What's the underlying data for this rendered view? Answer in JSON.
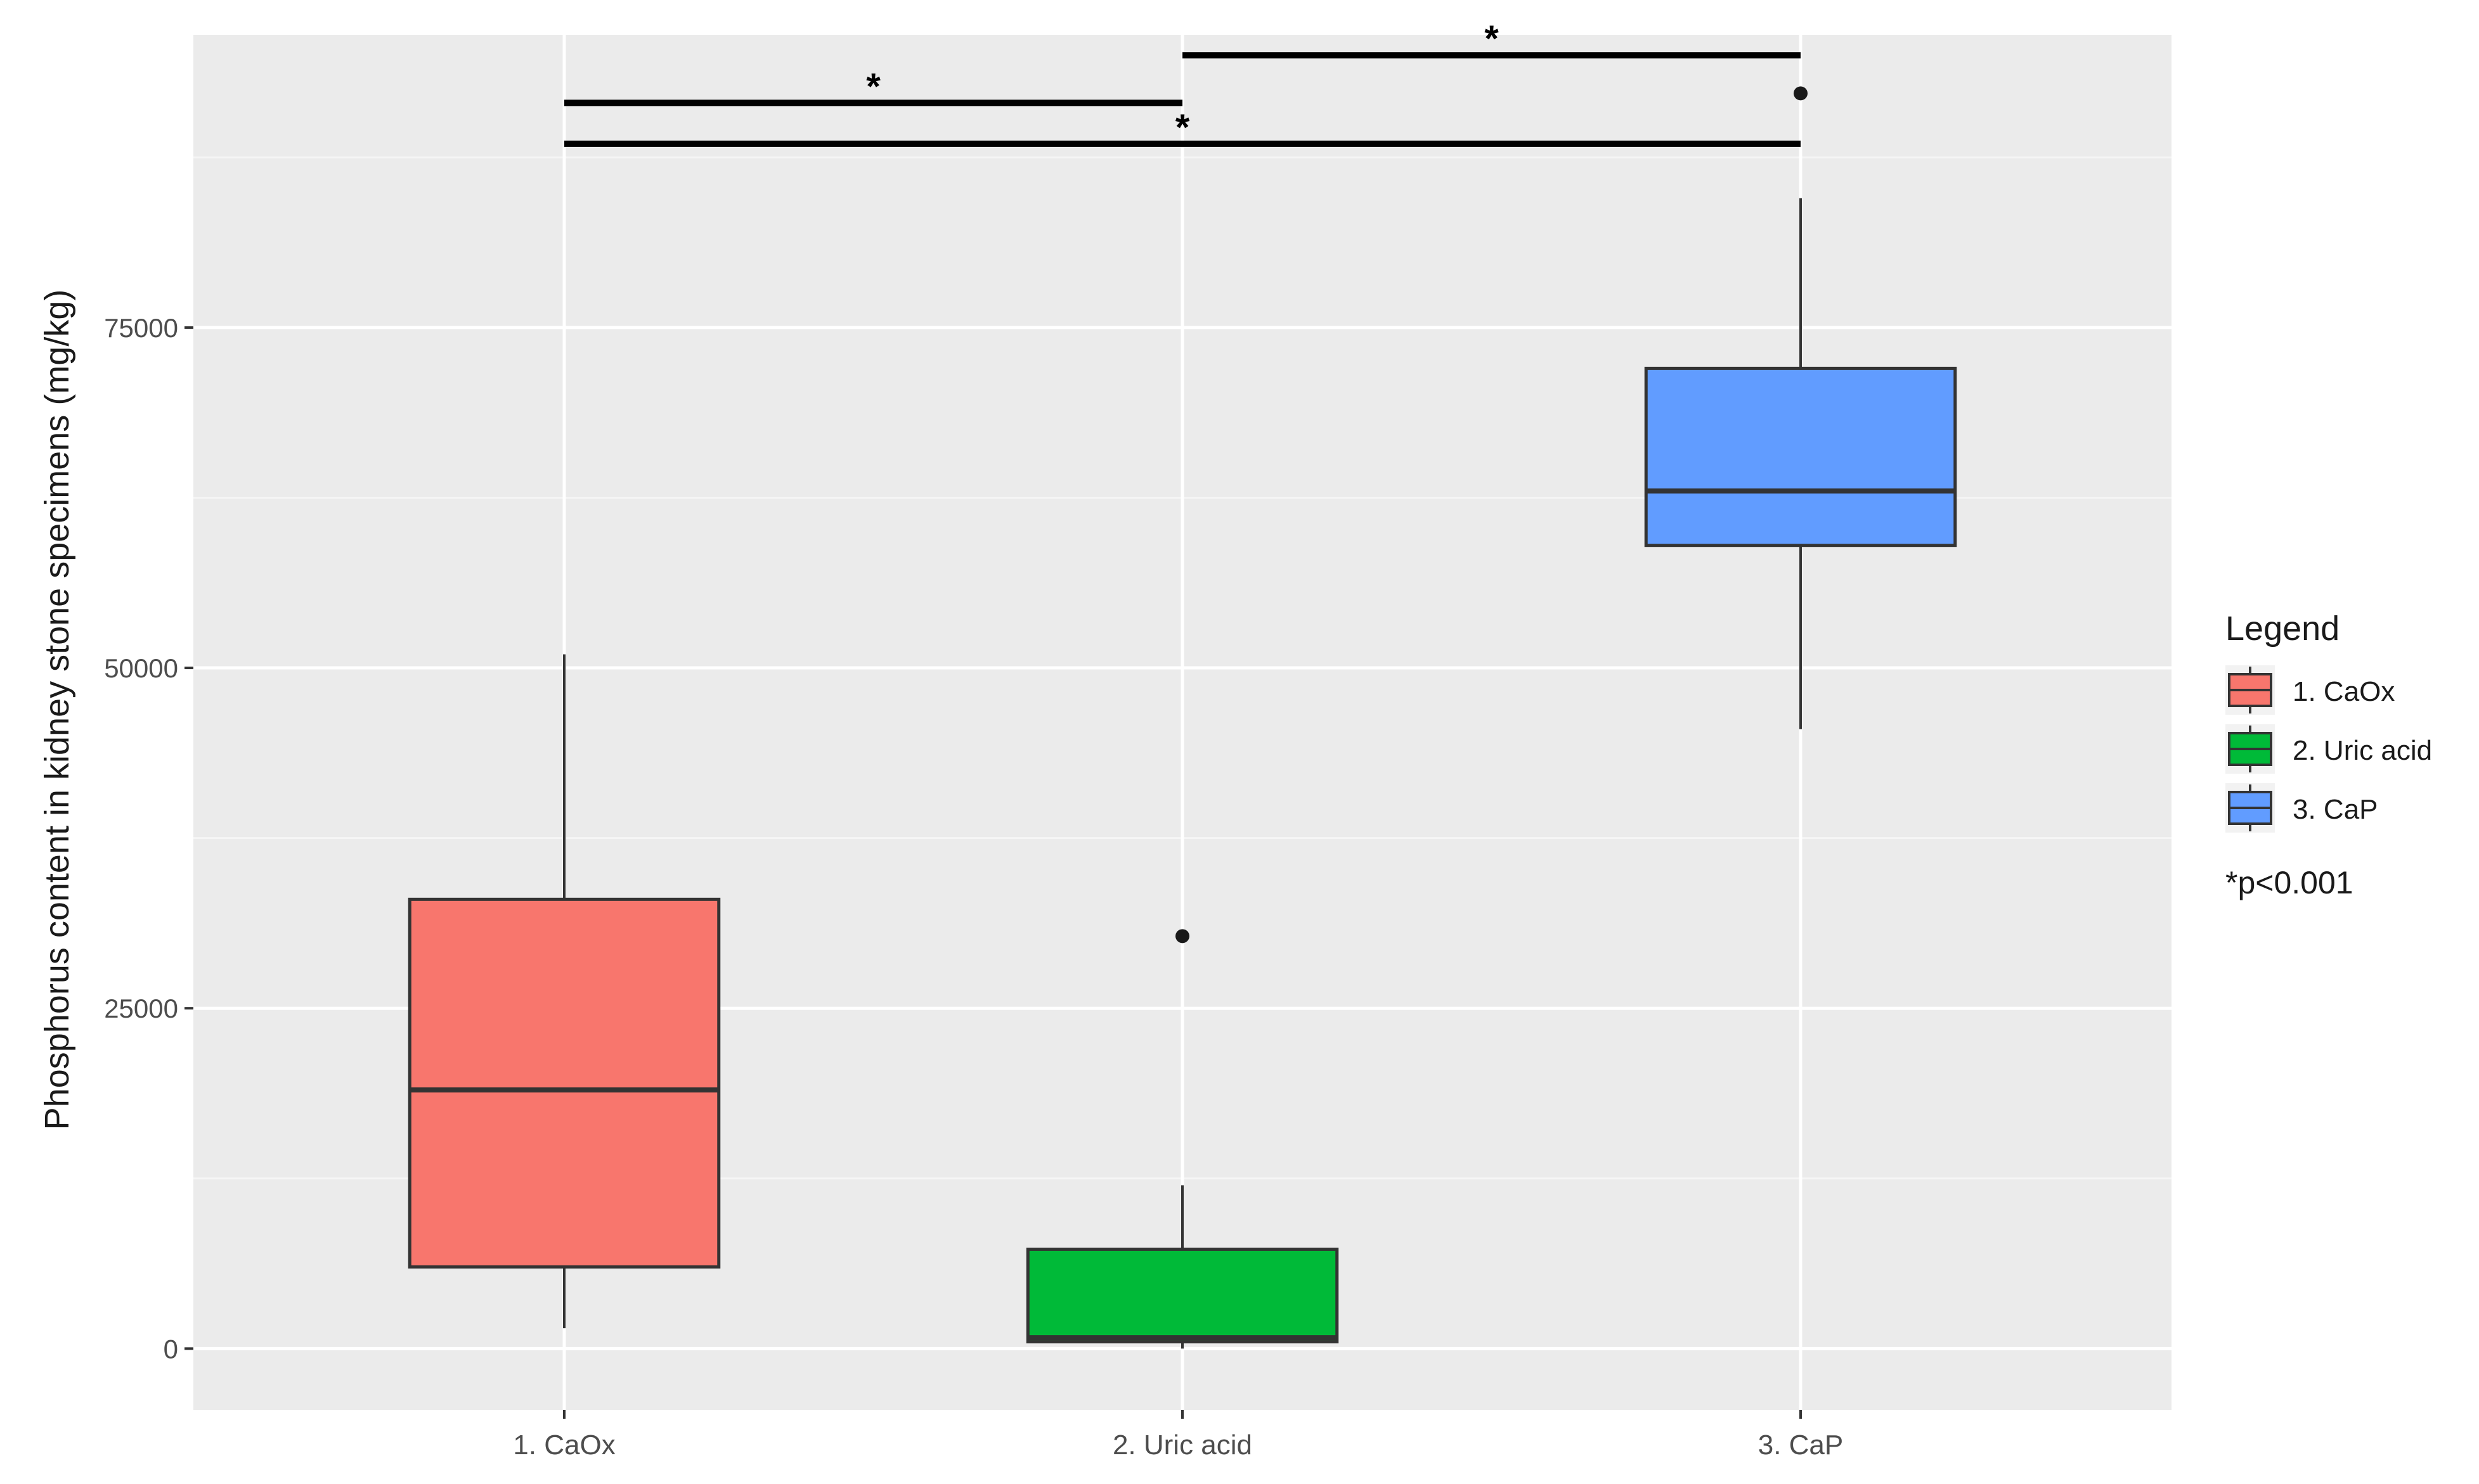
{
  "chart_data": {
    "type": "boxplot",
    "title": "",
    "xlabel": "",
    "ylabel": "Phosphorus content in kidney stone specimens (mg/kg)",
    "ylim": [
      -4500,
      96500
    ],
    "yticks": [
      0,
      25000,
      50000,
      75000
    ],
    "ytick_labels": [
      "0",
      "25000",
      "50000",
      "75000"
    ],
    "grid": true,
    "categories": [
      "1. CaOx",
      "2. Uric acid",
      "3. CaP"
    ],
    "boxes": [
      {
        "category": "1. CaOx",
        "color": "#F8766D",
        "whisker_low": 1500,
        "q1": 6000,
        "median": 19000,
        "q3": 33000,
        "whisker_high": 51000,
        "outliers": []
      },
      {
        "category": "2. Uric acid",
        "color": "#00BA38",
        "whisker_low": 0,
        "q1": 500,
        "median": 800,
        "q3": 7300,
        "whisker_high": 12000,
        "outliers": [
          30300
        ]
      },
      {
        "category": "3. CaP",
        "color": "#619CFF",
        "whisker_low": 45500,
        "q1": 59000,
        "median": 63000,
        "q3": 72000,
        "whisker_high": 84500,
        "outliers": [
          92200
        ]
      }
    ],
    "significance": [
      {
        "from": "1. CaOx",
        "to": "2. Uric acid",
        "y": 91500,
        "label": "*"
      },
      {
        "from": "1. CaOx",
        "to": "3. CaP",
        "y": 88500,
        "label": "*"
      },
      {
        "from": "2. Uric acid",
        "to": "3. CaP",
        "y": 95000,
        "label": "*"
      }
    ],
    "legend": {
      "title": "Legend",
      "position": "right",
      "entries": [
        "1. CaOx",
        "2. Uric acid",
        "3. CaP"
      ],
      "note": "*p<0.001"
    }
  }
}
